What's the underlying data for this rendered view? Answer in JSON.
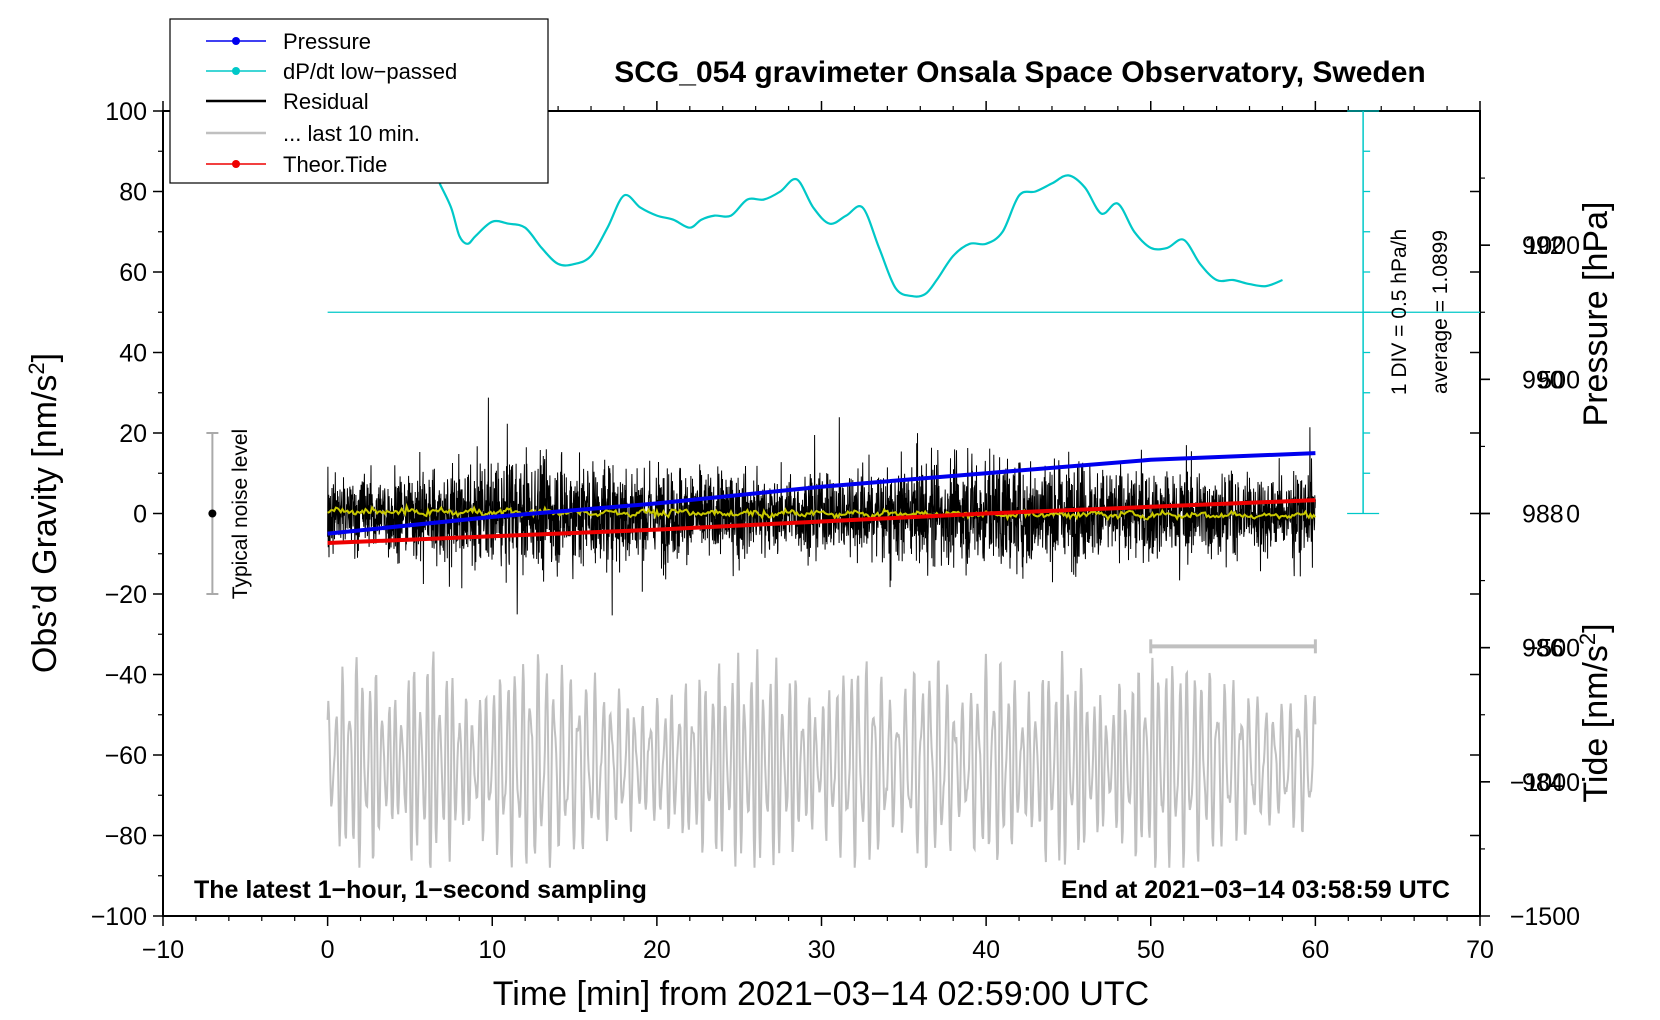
{
  "chart_data": {
    "type": "line",
    "title": "SCG_054 gravimeter Onsala Space Observatory, Sweden",
    "xlabel": "Time [min] from 2021−03−14 02:59:00 UTC",
    "xlim": [
      -10,
      70
    ],
    "xticks": [
      -10,
      0,
      10,
      20,
      30,
      40,
      50,
      60,
      70
    ],
    "xtick_labels": [
      "−10",
      "0",
      "10",
      "20",
      "30",
      "40",
      "50",
      "60",
      "70"
    ],
    "left_axis": {
      "label_prefix": "Obs’d Gravity [nm/s",
      "label_sup": "2",
      "label_suffix": "]",
      "ylim": [
        -100,
        100
      ],
      "ticks": [
        -100,
        -80,
        -60,
        -40,
        -20,
        0,
        20,
        40,
        60,
        80,
        100
      ],
      "tick_labels": [
        "−100",
        "−80",
        "−60",
        "−40",
        "−20",
        "0",
        "20",
        "40",
        "60",
        "80",
        "100"
      ]
    },
    "pressure_axis": {
      "label": "Pressure [hPa]",
      "ylim": [
        982,
        994
      ],
      "ticks": [
        984,
        986,
        988,
        990,
        992
      ],
      "tick_labels": [
        "984",
        "986",
        "988",
        "990",
        "992"
      ]
    },
    "tide_axis": {
      "label_prefix": "Tide [nm/s",
      "label_sup": "2",
      "label_suffix": "]",
      "ylim": [
        -1500,
        1500
      ],
      "ticks": [
        -1500,
        -1000,
        -500,
        0,
        500,
        1000
      ],
      "tick_labels": [
        "−1500",
        "−1000",
        "−500",
        "0",
        "500",
        "1000"
      ]
    },
    "series": [
      {
        "name": "Pressure",
        "color": "#0000ee",
        "axis": "pressure",
        "x": [
          0,
          10,
          20,
          30,
          40,
          50,
          60
        ],
        "y": [
          987.7,
          987.95,
          988.15,
          988.4,
          988.6,
          988.8,
          988.9
        ]
      },
      {
        "name": "dP/dt low−passed",
        "color": "#00c8c8",
        "axis": "gravity",
        "x": [
          6.8,
          7.5,
          8.0,
          8.5,
          9.0,
          10.0,
          11.0,
          12.0,
          13.0,
          14.0,
          15.0,
          16.0,
          17.0,
          18.0,
          19.0,
          20.0,
          21.0,
          22.0,
          22.7,
          23.5,
          24.5,
          25.5,
          26.5,
          27.5,
          28.5,
          29.5,
          30.5,
          31.5,
          32.5,
          33.5,
          34.5,
          35.5,
          36.3,
          37.0,
          38.0,
          39.0,
          40.0,
          41.0,
          42.0,
          43.0,
          44.0,
          45.0,
          46.0,
          47.0,
          48.0,
          49.0,
          50.0,
          51.0,
          52.0,
          53.0,
          54.0,
          55.0,
          56.0,
          57.0,
          58.0
        ],
        "y": [
          82,
          76,
          69,
          67,
          69,
          72.5,
          72,
          71,
          66,
          62,
          62,
          64,
          71,
          79,
          76,
          74,
          73,
          71,
          73,
          74,
          74,
          78,
          78,
          80,
          83,
          76,
          72,
          74,
          76,
          66,
          56,
          54,
          54.5,
          58,
          64,
          67,
          67,
          70,
          79,
          80,
          82,
          84,
          81,
          74.5,
          77,
          70,
          66,
          66,
          68,
          62,
          58,
          58,
          57,
          56.5,
          58
        ]
      },
      {
        "name": "Residual",
        "color": "#000000",
        "axis": "gravity",
        "x": [
          0,
          60
        ],
        "y": [
          0,
          0
        ],
        "range": [
          -29,
          32
        ]
      },
      {
        "name": "... last 10 min.",
        "color": "#c0c0c0",
        "axis": "gravity",
        "x": [
          50,
          60
        ],
        "y": [
          -33,
          -33
        ]
      },
      {
        "name": "Theor.Tide",
        "color": "#ee0000",
        "axis": "tide",
        "x": [
          0,
          10,
          20,
          30,
          40,
          50,
          60
        ],
        "y": [
          -110,
          -85,
          -60,
          -30,
          0,
          25,
          50
        ]
      },
      {
        "name": "Tide residual",
        "color": "#c0c0c0",
        "axis": "gravity",
        "x": [
          0,
          60
        ],
        "y": [
          -62,
          -62
        ],
        "range": [
          -88,
          -33
        ]
      },
      {
        "name": "Smoothed residual",
        "color": "#c8c800",
        "axis": "gravity",
        "x": [
          0,
          60
        ],
        "y": [
          0.5,
          -0.5
        ]
      }
    ],
    "noise_bar": {
      "x": -7,
      "y": 0,
      "low": -20,
      "high": 20,
      "label": "Typical noise level"
    },
    "dpdt_scale": {
      "x": 62.9,
      "label1": "1 DIV = 0.5 hPa/h",
      "label2": "average = 1.0899",
      "baseline": 50,
      "top": 100,
      "bottom": 0
    },
    "legend": {
      "position": "top-left",
      "entries": [
        "Pressure",
        "dP/dt low−passed",
        "Residual",
        "... last 10 min.",
        "Theor.Tide"
      ]
    },
    "annotations": {
      "bottom_left": "The latest 1−hour, 1−second sampling",
      "bottom_right": "End at 2021−03−14 03:58:59 UTC"
    }
  }
}
